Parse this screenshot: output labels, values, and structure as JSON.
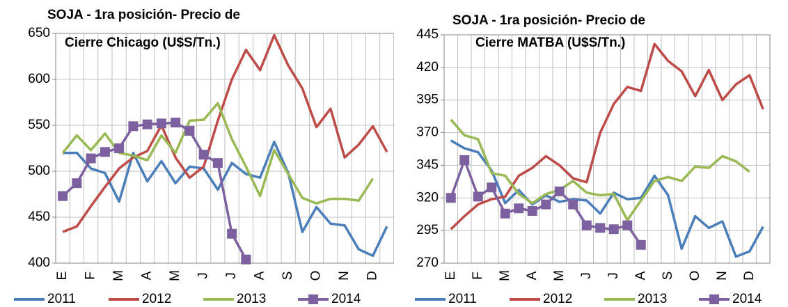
{
  "chart_data": [
    {
      "type": "line",
      "title": [
        "SOJA - 1ra posición- Precio de",
        "Cierre Chicago  (U$S/Tn.)"
      ],
      "categories": [
        "E",
        null,
        "F",
        null,
        "M",
        null,
        "A",
        null,
        "M",
        null,
        "J",
        null,
        "J",
        null,
        "A",
        null,
        "S",
        null,
        "O",
        null,
        "N",
        null,
        "D",
        null
      ],
      "ylim": [
        400,
        650
      ],
      "yticks": [
        400,
        450,
        500,
        550,
        600,
        650
      ],
      "grid": true,
      "series": [
        {
          "name": "2011",
          "color": "#4a7ebb",
          "values": [
            520,
            520,
            503,
            498,
            467,
            520,
            489,
            511,
            487,
            505,
            503,
            480,
            509,
            497,
            493,
            532,
            498,
            434,
            461,
            443,
            441,
            415,
            408,
            440
          ]
        },
        {
          "name": "2012",
          "color": "#be4b48",
          "values": [
            434,
            440,
            462,
            483,
            503,
            515,
            522,
            550,
            515,
            493,
            505,
            555,
            600,
            632,
            610,
            648,
            615,
            590,
            548,
            568,
            515,
            529,
            549,
            521
          ]
        },
        {
          "name": "2013",
          "color": "#98b954",
          "values": [
            520,
            539,
            523,
            541,
            520,
            517,
            512,
            539,
            520,
            555,
            556,
            574,
            535,
            505,
            473,
            523,
            497,
            471,
            465,
            470,
            470,
            468,
            492,
            null
          ]
        },
        {
          "name": "2014",
          "color": "#7d60a0",
          "marker": "square",
          "values": [
            473,
            487,
            514,
            521,
            525,
            549,
            551,
            552,
            553,
            544,
            518,
            509,
            432,
            404,
            null,
            null,
            null,
            null,
            null,
            null,
            null,
            null,
            null,
            null
          ]
        }
      ]
    },
    {
      "type": "line",
      "title": [
        "SOJA - 1ra posición- Precio de",
        "Cierre MATBA (U$S/Tn.)"
      ],
      "categories": [
        "E",
        null,
        "F",
        null,
        "M",
        null,
        "A",
        null,
        "M",
        null,
        "J",
        null,
        "J",
        null,
        "A",
        null,
        "S",
        null,
        "O",
        null,
        "N",
        null,
        "D",
        null
      ],
      "ylim": [
        270,
        445
      ],
      "yticks": [
        270,
        295,
        320,
        345,
        370,
        395,
        420,
        445
      ],
      "grid": true,
      "series": [
        {
          "name": "2011",
          "color": "#4a7ebb",
          "values": [
            364,
            358,
            355,
            341,
            316,
            326,
            315,
            322,
            317,
            319,
            318,
            308,
            324,
            319,
            320,
            337,
            322,
            281,
            306,
            297,
            302,
            275,
            279,
            298
          ]
        },
        {
          "name": "2012",
          "color": "#be4b48",
          "values": [
            296,
            306,
            315,
            319,
            321,
            337,
            343,
            352,
            345,
            335,
            332,
            370,
            392,
            405,
            402,
            438,
            425,
            417,
            398,
            418,
            395,
            407,
            414,
            388
          ]
        },
        {
          "name": "2013",
          "color": "#98b954",
          "values": [
            380,
            368,
            365,
            339,
            337,
            323,
            316,
            323,
            326,
            333,
            324,
            322,
            323,
            303,
            318,
            333,
            336,
            333,
            344,
            343,
            352,
            348,
            340,
            null
          ]
        },
        {
          "name": "2014",
          "color": "#7d60a0",
          "marker": "square",
          "values": [
            320,
            349,
            321,
            328,
            308,
            312,
            310,
            315,
            325,
            315,
            299,
            297,
            296,
            299,
            284,
            null,
            null,
            null,
            null,
            null,
            null,
            null,
            null,
            null
          ]
        }
      ]
    }
  ]
}
